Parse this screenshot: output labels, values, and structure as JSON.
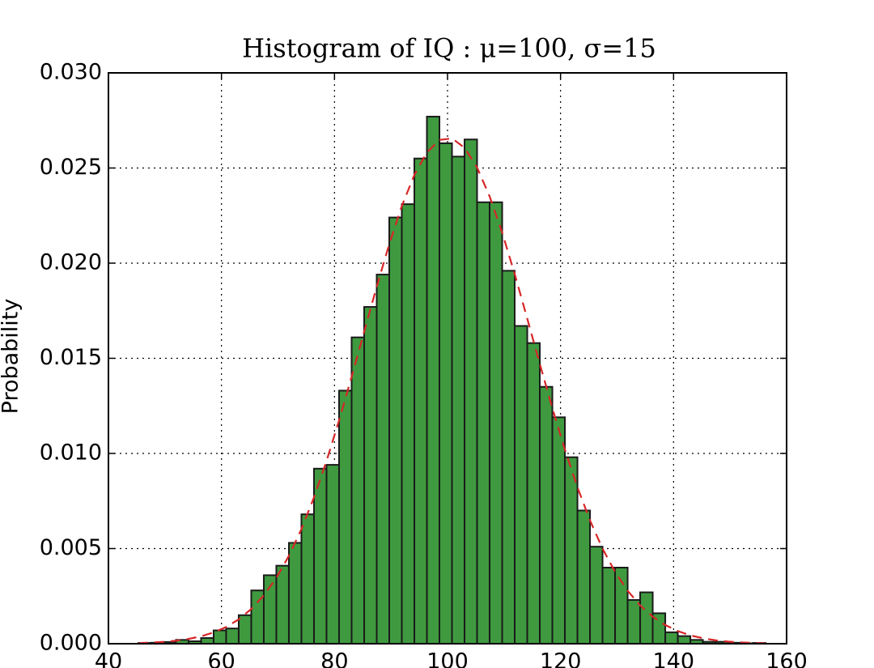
{
  "chart_data": {
    "type": "histogram",
    "title": "Histogram of IQ : μ=100, σ=15",
    "y_label": "Probability",
    "bins": [
      45.29,
      47.51,
      49.73,
      51.95,
      54.17,
      56.39,
      58.61,
      60.83,
      63.05,
      65.27,
      67.49,
      69.71,
      71.93,
      74.15,
      76.37,
      78.59,
      80.81,
      83.03,
      85.25,
      87.47,
      89.69,
      91.91,
      94.13,
      96.35,
      98.57,
      100.79,
      103.01,
      105.23,
      107.45,
      109.67,
      111.89,
      114.11,
      116.33,
      118.55,
      120.77,
      122.99,
      125.21,
      127.43,
      129.65,
      131.87,
      134.09,
      136.31,
      138.53,
      140.75,
      142.97,
      145.19,
      147.41,
      149.63,
      151.85,
      154.07,
      156.29
    ],
    "values": [
      4e-05,
      5e-05,
      9e-05,
      0.0002,
      0.00013,
      0.0003,
      0.0007,
      0.0008,
      0.0015,
      0.0028,
      0.0036,
      0.0041,
      0.0053,
      0.0068,
      0.0092,
      0.0094,
      0.0133,
      0.0161,
      0.0177,
      0.0194,
      0.0224,
      0.0231,
      0.0255,
      0.0277,
      0.0263,
      0.0256,
      0.0265,
      0.0232,
      0.0232,
      0.0196,
      0.0167,
      0.0158,
      0.0135,
      0.0119,
      0.0098,
      0.007,
      0.0051,
      0.004,
      0.004,
      0.0023,
      0.0027,
      0.0016,
      0.0006,
      0.0004,
      0.0002,
      0.0001,
      0.0001,
      5e-05,
      2e-05,
      4e-05
    ],
    "color": "#3f9a3f",
    "curve": {
      "color": "#d62728",
      "dashed": true,
      "values": [
        3.43e-05,
        5.83e-05,
        9.69e-05,
        0.0001573,
        0.00025,
        0.000389,
        0.000591,
        0.000879,
        0.00128,
        0.001823,
        0.002539,
        0.003462,
        0.004618,
        0.006024,
        0.00769,
        0.009604,
        0.011732,
        0.014024,
        0.016399,
        0.018764,
        0.021,
        0.022998,
        0.024636,
        0.025819,
        0.026476,
        0.026559,
        0.026067,
        0.025027,
        0.023511,
        0.021607,
        0.019426,
        0.017088,
        0.014705,
        0.012381,
        0.010197,
        0.008218,
        0.006479,
        0.004997,
        0.003771,
        0.002785,
        0.00201,
        0.00142,
        0.000982,
        0.000664,
        0.000439,
        0.000285,
        0.00018,
        0.000112,
        6.76e-05,
        4.01e-05,
        2.33e-05
      ]
    },
    "xlim": [
      40,
      160
    ],
    "xticks": [
      40,
      60,
      80,
      100,
      120,
      140,
      160
    ],
    "ylim": [
      0,
      0.03
    ],
    "yticks": [
      {
        "value": 0,
        "label": "0.000"
      },
      {
        "value": 0.005,
        "label": "0.005"
      },
      {
        "value": 0.01,
        "label": "0.010"
      },
      {
        "value": 0.015,
        "label": "0.015"
      },
      {
        "value": 0.02,
        "label": "0.020"
      },
      {
        "value": 0.025,
        "label": "0.025"
      },
      {
        "value": 0.03,
        "label": "0.030"
      }
    ],
    "grid": true
  }
}
